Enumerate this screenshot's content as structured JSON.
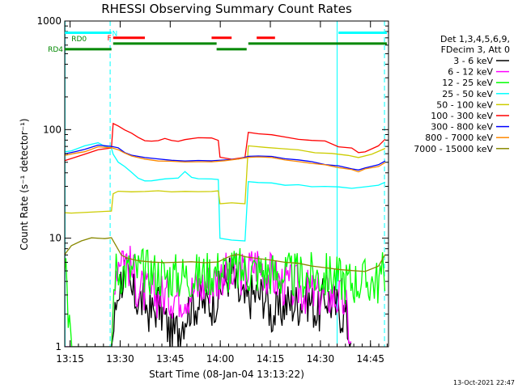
{
  "chart_data": {
    "type": "line",
    "title": "RHESSI Observing Summary Count Rates",
    "xlabel": "Start Time (08-Jan-04 13:13:22)",
    "ylabel": "Count Rate (s⁻¹ detector⁻¹)",
    "x_unit": "minutes after 13:13:22",
    "xlim": [
      0,
      97
    ],
    "ylim": [
      1,
      1000
    ],
    "yscale": "log",
    "x_ticks": [
      {
        "label": "13:15",
        "value": 1.6
      },
      {
        "label": "13:30",
        "value": 16.6
      },
      {
        "label": "13:45",
        "value": 31.6
      },
      {
        "label": "14:00",
        "value": 46.6
      },
      {
        "label": "14:15",
        "value": 61.6
      },
      {
        "label": "14:30",
        "value": 76.6
      },
      {
        "label": "14:45",
        "value": 91.6
      }
    ],
    "y_ticks": [
      {
        "label": "1",
        "value": 1
      },
      {
        "label": "10",
        "value": 10
      },
      {
        "label": "100",
        "value": 100
      },
      {
        "label": "1000",
        "value": 1000
      }
    ],
    "legend_header": [
      "Det 1,3,4,5,6,9,",
      "FDecim 3, Att 0"
    ],
    "legend_position": "right",
    "timestamp": "13-Oct-2021 22:47",
    "flags": [
      {
        "label": "N",
        "color": "#00ffff",
        "segments": [
          [
            0,
            14
          ],
          [
            82,
            96.5
          ]
        ],
        "level": 780
      },
      {
        "label": "F",
        "color": "#ff0000",
        "segments": [
          [
            14.5,
            24
          ],
          [
            44,
            50
          ],
          [
            57.5,
            63
          ]
        ],
        "level": 700
      },
      {
        "label": "RD0",
        "color": "#008800",
        "segments": [
          [
            14.5,
            45.5
          ],
          [
            55,
            96.5
          ]
        ],
        "level": 620
      },
      {
        "label": "RD4",
        "color": "#008800",
        "segments": [
          [
            0,
            14
          ],
          [
            45.5,
            54.5
          ]
        ],
        "level": 550
      }
    ],
    "vertical_lines": [
      {
        "x": 0.1,
        "color": "#00ffff",
        "style": "solid"
      },
      {
        "x": 13.6,
        "color": "#00ffff",
        "style": "dashed"
      },
      {
        "x": 81.6,
        "color": "#00ffff",
        "style": "solid"
      },
      {
        "x": 95.8,
        "color": "#00ffff",
        "style": "dashed"
      }
    ],
    "series": [
      {
        "name": "3 - 6 keV",
        "color": "#000000",
        "noisy": true,
        "x": [
          0,
          2,
          14,
          16,
          18,
          20,
          24,
          26,
          28,
          30,
          32,
          34,
          36,
          38,
          40,
          44,
          46,
          48,
          50,
          52,
          54,
          56,
          58,
          60,
          62,
          64,
          66,
          68,
          70,
          72,
          74,
          76,
          78,
          80,
          82,
          84,
          86
        ],
        "y": [
          1,
          1,
          1,
          3.5,
          5,
          3,
          2.5,
          2,
          2.5,
          1.8,
          1.2,
          1.5,
          2,
          2.5,
          2.5,
          2.5,
          3,
          4,
          5,
          3,
          2.5,
          3,
          3,
          3,
          2,
          2,
          2.5,
          2.5,
          2.5,
          3,
          2.5,
          2,
          3,
          2.5,
          2.2,
          2,
          1
        ]
      },
      {
        "name": "6 - 12 keV",
        "color": "#ff00ff",
        "noisy": true,
        "x": [
          0,
          2,
          14,
          15,
          17,
          19,
          22,
          25,
          30,
          35,
          40,
          44,
          46,
          47.5,
          50,
          52,
          54,
          56,
          58,
          60,
          62,
          64,
          66,
          68,
          70,
          72,
          75,
          78,
          80,
          82,
          84,
          86
        ],
        "y": [
          1,
          1,
          1,
          5,
          8,
          6,
          3.5,
          3,
          3,
          3,
          3.5,
          4,
          4.2,
          5,
          4,
          5,
          4.5,
          5.5,
          6,
          5,
          4.5,
          4,
          3.8,
          3.5,
          3.5,
          3.2,
          3,
          3,
          3,
          2.8,
          2.5,
          1
        ]
      },
      {
        "name": "12 - 25 keV",
        "color": "#00ff00",
        "noisy": true,
        "x": [
          0,
          0.5,
          1,
          2,
          14,
          15,
          20,
          25,
          30,
          35,
          40,
          45,
          50,
          55,
          60,
          65,
          70,
          75,
          80,
          85,
          90,
          94,
          96
        ],
        "y": [
          5,
          5,
          2,
          1,
          1,
          5,
          5,
          5,
          4.5,
          4.5,
          4.5,
          5,
          5,
          5,
          5,
          4.5,
          4.5,
          4.5,
          4.5,
          4,
          4,
          4,
          5
        ]
      },
      {
        "name": "25 - 50 keV",
        "color": "#00ffff",
        "x": [
          0,
          2,
          6,
          10,
          12,
          14,
          14.5,
          16,
          18,
          20,
          22,
          24,
          26,
          30,
          34,
          36,
          38,
          40,
          44,
          46,
          46.5,
          50,
          54,
          55,
          58,
          62,
          66,
          70,
          74,
          78,
          82,
          86,
          90,
          94,
          96
        ],
        "y": [
          62,
          64,
          70,
          76,
          70,
          68,
          60,
          50,
          45,
          40,
          36,
          34,
          34,
          35,
          36,
          41,
          36,
          35,
          35,
          35,
          10,
          9.5,
          9.5,
          33,
          33,
          32,
          31,
          31,
          30,
          30,
          30,
          29,
          30,
          31,
          33
        ]
      },
      {
        "name": "50 - 100 keV",
        "color": "#cccc00",
        "x": [
          0,
          2,
          14,
          14.5,
          16,
          20,
          24,
          28,
          32,
          36,
          40,
          44,
          46,
          46.5,
          50,
          54,
          55,
          60,
          65,
          70,
          75,
          80,
          85,
          88,
          92,
          96
        ],
        "y": [
          17,
          17,
          18,
          26,
          27,
          27,
          27,
          27,
          27,
          27,
          27,
          27,
          27,
          21,
          21,
          21,
          70,
          68,
          66,
          65,
          62,
          60,
          58,
          56,
          60,
          68
        ]
      },
      {
        "name": "100 - 300 keV",
        "color": "#ff0000",
        "x": [
          0,
          3,
          6,
          10,
          14,
          14.5,
          16,
          18,
          20,
          22,
          24,
          26,
          28,
          30,
          32,
          34,
          36,
          40,
          44,
          46,
          46.5,
          50,
          54,
          55,
          58,
          62,
          66,
          70,
          74,
          78,
          82,
          86,
          88,
          90,
          94,
          96
        ],
        "y": [
          52,
          55,
          60,
          65,
          68,
          115,
          108,
          100,
          92,
          85,
          80,
          78,
          80,
          83,
          80,
          79,
          82,
          85,
          83,
          80,
          55,
          54,
          55,
          95,
          92,
          90,
          85,
          82,
          80,
          78,
          70,
          68,
          62,
          63,
          70,
          82
        ]
      },
      {
        "name": "300 - 800 keV",
        "color": "#0000ff",
        "x": [
          0,
          3,
          6,
          10,
          14,
          16,
          18,
          20,
          24,
          28,
          32,
          36,
          40,
          44,
          48,
          52,
          55,
          58,
          62,
          66,
          70,
          74,
          78,
          82,
          86,
          88,
          90,
          94,
          96
        ],
        "y": [
          60,
          62,
          65,
          72,
          70,
          68,
          62,
          58,
          55,
          53,
          52,
          52,
          52,
          52,
          53,
          54,
          56,
          57,
          56,
          54,
          52,
          50,
          48,
          46,
          44,
          42,
          44,
          47,
          52
        ]
      },
      {
        "name": "800 - 7000 keV",
        "color": "#ff8800",
        "x": [
          0,
          3,
          6,
          10,
          14,
          16,
          18,
          20,
          24,
          28,
          32,
          36,
          40,
          44,
          48,
          52,
          55,
          58,
          62,
          66,
          70,
          74,
          78,
          82,
          86,
          88,
          90,
          94,
          96
        ],
        "y": [
          58,
          60,
          63,
          70,
          68,
          66,
          60,
          57,
          54,
          52,
          51,
          51,
          51,
          51,
          52,
          53,
          55,
          56,
          55,
          53,
          51,
          49,
          47,
          45,
          43,
          41,
          43,
          46,
          50
        ]
      },
      {
        "name": "7000 - 15000 keV",
        "color": "#888800",
        "x": [
          0,
          2,
          5,
          8,
          12,
          14,
          15,
          17,
          19,
          22,
          26,
          30,
          34,
          38,
          42,
          46,
          48,
          50,
          52,
          54,
          58,
          62,
          66,
          70,
          74,
          78,
          82,
          86,
          90,
          94,
          96
        ],
        "y": [
          7,
          8.5,
          9.5,
          10,
          10,
          10,
          9,
          7,
          6.5,
          6.2,
          6,
          6,
          6,
          6,
          6,
          6,
          6.5,
          7,
          7,
          6.8,
          6.5,
          6.3,
          6,
          5.8,
          5.5,
          5.3,
          5.2,
          5,
          5,
          5.5,
          7
        ]
      }
    ]
  }
}
